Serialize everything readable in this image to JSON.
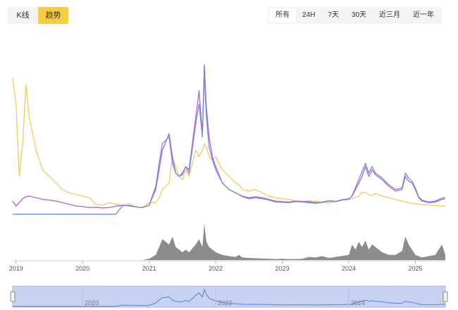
{
  "toolbar": {
    "chart_modes": [
      {
        "label": "K线",
        "active": false
      },
      {
        "label": "趋势",
        "active": true
      }
    ],
    "ranges": [
      {
        "label": "所有",
        "active": true
      },
      {
        "label": "24H",
        "active": false
      },
      {
        "label": "7天",
        "active": false
      },
      {
        "label": "30天",
        "active": false
      },
      {
        "label": "近三月",
        "active": false
      },
      {
        "label": "近一年",
        "active": false
      }
    ]
  },
  "colors": {
    "yellow": "#f2cb5a",
    "purple": "#b45fd0",
    "blue": "#6f8ee0",
    "volume": "#8c8c8c",
    "navigator_fill": "#c7d2f0",
    "navigator_line": "#5b7de0"
  },
  "chart_data": {
    "type": "line",
    "x_tick_labels": [
      "2019",
      "2020",
      "2021",
      "2022",
      "2023",
      "2024",
      "2025"
    ],
    "navigator_labels": [
      "2020",
      "2022",
      "2024"
    ],
    "x": [
      2018.95,
      2019.0,
      2019.05,
      2019.1,
      2019.15,
      2019.2,
      2019.3,
      2019.4,
      2019.5,
      2019.6,
      2019.7,
      2019.8,
      2019.9,
      2020.0,
      2020.1,
      2020.2,
      2020.3,
      2020.4,
      2020.5,
      2020.6,
      2020.7,
      2020.8,
      2020.9,
      2021.0,
      2021.1,
      2021.15,
      2021.2,
      2021.3,
      2021.35,
      2021.4,
      2021.45,
      2021.5,
      2021.55,
      2021.6,
      2021.7,
      2021.75,
      2021.8,
      2021.83,
      2021.86,
      2021.9,
      2021.95,
      2022.0,
      2022.1,
      2022.2,
      2022.3,
      2022.35,
      2022.4,
      2022.5,
      2022.6,
      2022.7,
      2022.8,
      2022.9,
      2023.0,
      2023.1,
      2023.2,
      2023.3,
      2023.4,
      2023.5,
      2023.6,
      2023.7,
      2023.8,
      2023.9,
      2024.0,
      2024.05,
      2024.1,
      2024.15,
      2024.2,
      2024.25,
      2024.3,
      2024.35,
      2024.4,
      2024.5,
      2024.6,
      2024.7,
      2024.8,
      2024.85,
      2024.9,
      2024.95,
      2025.0,
      2025.05,
      2025.1,
      2025.2,
      2025.3,
      2025.4,
      2025.45
    ],
    "series": [
      {
        "color": "#f2cb5a",
        "values": [
          42,
          34,
          12,
          22,
          40,
          30,
          20,
          14,
          12,
          10,
          8,
          7,
          6.5,
          6,
          5.5,
          3.5,
          3.2,
          4,
          3.5,
          3.2,
          3.8,
          2.8,
          2.5,
          4,
          4,
          5.5,
          8,
          10,
          18,
          15,
          12,
          11,
          14,
          12,
          20,
          18,
          20,
          22,
          21,
          18,
          17,
          18,
          14,
          12,
          10,
          9.5,
          8,
          7.5,
          8,
          7,
          6,
          5.5,
          5.2,
          5,
          4.5,
          4.2,
          4.6,
          4.4,
          4.1,
          4.0,
          4.3,
          4.8,
          5.0,
          5.2,
          5.6,
          6.0,
          7.2,
          7.0,
          6.5,
          6.2,
          6.8,
          6.0,
          5.5,
          5.0,
          4.5,
          4.2,
          4.0,
          3.8,
          3.6,
          3.5,
          3.4,
          3.3,
          3.1,
          3.0,
          3.0
        ]
      },
      {
        "color": "#b45fd0",
        "values": [
          4.5,
          3.0,
          4.0,
          5.2,
          5.8,
          6.0,
          5.5,
          5.0,
          4.8,
          4.5,
          4.0,
          3.5,
          3.0,
          2.8,
          2.5,
          2.6,
          2.4,
          2.5,
          2.9,
          3.2,
          3.0,
          2.7,
          2.5,
          3.2,
          8,
          14,
          20,
          25,
          18,
          13,
          12,
          13,
          15,
          14,
          30,
          38,
          25,
          46,
          33,
          24,
          18,
          15,
          10,
          8,
          7,
          6.5,
          6.0,
          5.5,
          5.8,
          5.5,
          5.0,
          4.5,
          4.3,
          4.2,
          4.5,
          4.4,
          4.3,
          4.0,
          4.2,
          4.6,
          4.4,
          4.9,
          5.2,
          6.0,
          8.0,
          10.0,
          12.0,
          15.0,
          12.0,
          14.0,
          12.5,
          11.0,
          9.0,
          7.5,
          8.0,
          12.0,
          10.5,
          10.0,
          8.0,
          5.5,
          4.5,
          4.0,
          4.2,
          5.0,
          5.2
        ]
      },
      {
        "color": "#6f8ee0",
        "values": [
          0.5,
          0.5,
          0.5,
          0.5,
          0.5,
          0.5,
          0.5,
          0.5,
          0.5,
          0.5,
          0.5,
          0.5,
          0.5,
          0.5,
          0.5,
          0.5,
          0.5,
          0.5,
          0.5,
          3.0,
          3.2,
          2.7,
          2.5,
          3.2,
          9,
          16,
          22,
          24,
          16,
          13,
          12,
          12.5,
          15,
          13,
          28,
          34,
          24,
          43,
          30,
          21,
          17,
          14,
          10,
          8,
          7,
          6.5,
          5.8,
          5.2,
          5.5,
          5.2,
          4.8,
          4.2,
          4.1,
          4.0,
          4.3,
          4.2,
          4.0,
          3.8,
          4.1,
          4.5,
          4.3,
          4.8,
          5.0,
          6.2,
          8.6,
          11.0,
          13.5,
          16.0,
          13.0,
          15.0,
          13.0,
          11.5,
          9.5,
          8.0,
          8.5,
          13.0,
          11.5,
          10.5,
          8.5,
          5.8,
          4.8,
          4.2,
          4.5,
          5.4,
          5.6
        ]
      }
    ],
    "volume": [
      0,
      0,
      0,
      0,
      0,
      0,
      0,
      0,
      0,
      0,
      0,
      0,
      0,
      0,
      0,
      0,
      0,
      0,
      0,
      0,
      0,
      0,
      0,
      0.5,
      2,
      5,
      8,
      6,
      9,
      5,
      4,
      3,
      4,
      3,
      6,
      8,
      5,
      14,
      7,
      5,
      4,
      3,
      2,
      1.5,
      1.2,
      2,
      1.0,
      0.8,
      0.7,
      0.6,
      0.5,
      0.4,
      0.5,
      0.4,
      0.4,
      0.5,
      1.2,
      1.0,
      1.5,
      0.8,
      1.2,
      1.6,
      2.0,
      6.0,
      4.0,
      7.0,
      5.0,
      7.5,
      4.0,
      6.0,
      5.0,
      3.0,
      2.0,
      2.0,
      3.5,
      9.0,
      6.0,
      4.0,
      2.0,
      1.5,
      1.0,
      1.5,
      2.0,
      6.0,
      2.0
    ],
    "xlim": [
      2018.95,
      2025.45
    ],
    "ylim": [
      0,
      46
    ]
  }
}
